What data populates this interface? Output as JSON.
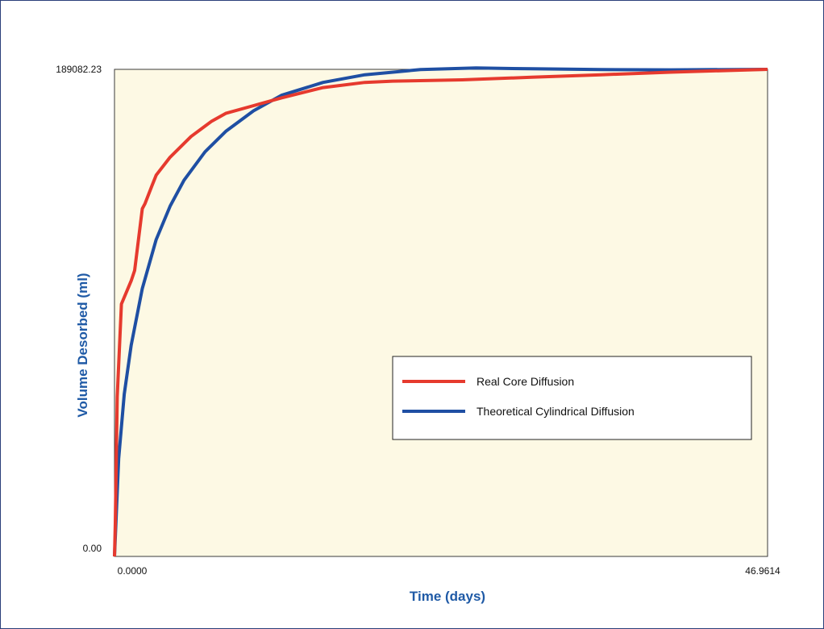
{
  "chart_data": {
    "type": "line",
    "title": "",
    "xlabel": "Time (days)",
    "ylabel": "Volume Desorbed (ml)",
    "xlim": [
      0,
      46.9614
    ],
    "ylim": [
      0,
      189082.23
    ],
    "x_tick_labels": [
      "0.0000",
      "46.9614"
    ],
    "y_tick_labels": [
      "0.00",
      "189082.23"
    ],
    "plot_background": "#fdf9e4",
    "legend_position": "center-right",
    "series": [
      {
        "name": "Real Core Diffusion",
        "color": "#e63a2e",
        "x": [
          0,
          0.06,
          0.2,
          0.5,
          1.2,
          1.45,
          2.0,
          2.2,
          2.7,
          3.0,
          4.0,
          5.5,
          7.0,
          8.0,
          10.0,
          12.0,
          15.0,
          18.0,
          20.0,
          25.0,
          30.0,
          35.0,
          40.0,
          46.96
        ],
        "y": [
          0,
          13000,
          62000,
          98000,
          107000,
          111000,
          135000,
          137000,
          144000,
          148000,
          155000,
          163000,
          169000,
          172000,
          175000,
          178000,
          182000,
          184000,
          184500,
          185000,
          186000,
          187000,
          188000,
          189082
        ]
      },
      {
        "name": "Theoretical Cylindrical Diffusion",
        "color": "#1f4fa3",
        "x": [
          0,
          0.3,
          0.7,
          1.2,
          2.0,
          3.0,
          4.0,
          5.0,
          6.5,
          8.0,
          10.0,
          12.0,
          15.0,
          18.0,
          22.0,
          26.0,
          30.0,
          35.0,
          40.0,
          46.96
        ],
        "y": [
          0,
          38000,
          63000,
          82000,
          104000,
          123000,
          136000,
          146000,
          157000,
          165000,
          173000,
          179000,
          184000,
          187000,
          189000,
          189600,
          189300,
          189000,
          188900,
          189082
        ]
      }
    ]
  }
}
